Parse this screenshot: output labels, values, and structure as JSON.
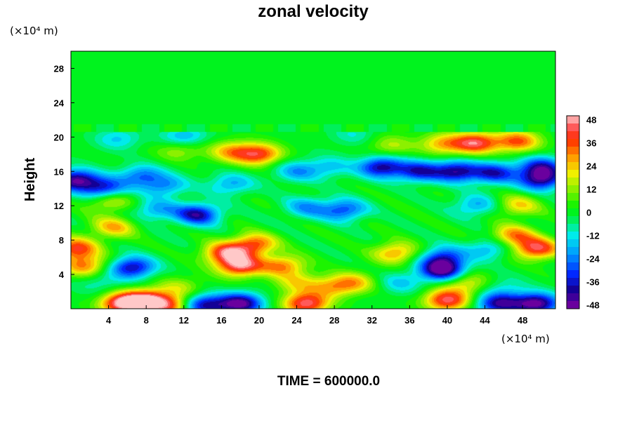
{
  "chart_data": {
    "type": "heatmap",
    "title": "zonal velocity",
    "xlabel": "",
    "ylabel": "Height",
    "x_unit": "(×10⁴ m)",
    "y_unit": "(×10⁴ m)",
    "xlim": [
      0,
      51.5
    ],
    "ylim": [
      0,
      30
    ],
    "xticks": [
      4,
      8,
      12,
      16,
      20,
      24,
      28,
      32,
      36,
      40,
      44,
      48
    ],
    "yticks": [
      4,
      8,
      12,
      16,
      20,
      24,
      28
    ],
    "colorbar": {
      "min": -50,
      "max": 50,
      "ticks": [
        48,
        36,
        24,
        12,
        0,
        -12,
        -24,
        -36,
        -48
      ]
    },
    "annotation": "TIME = 600000.0",
    "grid": false,
    "features": [
      {
        "x": 0.5,
        "y": 7,
        "value": 38
      },
      {
        "x": 1.5,
        "y": 5,
        "value": 30
      },
      {
        "x": 3,
        "y": 3,
        "value": -10
      },
      {
        "x": 4.5,
        "y": 9.5,
        "value": 25
      },
      {
        "x": 6.5,
        "y": 4.8,
        "value": -40
      },
      {
        "x": 5.5,
        "y": 0.6,
        "value": 48
      },
      {
        "x": 8,
        "y": 1,
        "value": 44
      },
      {
        "x": 10.5,
        "y": 0.3,
        "value": 35
      },
      {
        "x": 11.5,
        "y": 2.5,
        "value": 15
      },
      {
        "x": 16.5,
        "y": 6.5,
        "value": 40
      },
      {
        "x": 18,
        "y": 5,
        "value": 45
      },
      {
        "x": 19.5,
        "y": 7.5,
        "value": 35
      },
      {
        "x": 22.5,
        "y": 5,
        "value": 30
      },
      {
        "x": 14,
        "y": 0.4,
        "value": -40
      },
      {
        "x": 18,
        "y": 0.6,
        "value": -48
      },
      {
        "x": 25,
        "y": 0.6,
        "value": 45
      },
      {
        "x": 24,
        "y": 3,
        "value": 18
      },
      {
        "x": 27.5,
        "y": 2.5,
        "value": 20
      },
      {
        "x": 30,
        "y": 3,
        "value": 25
      },
      {
        "x": 34.5,
        "y": 6.5,
        "value": 28
      },
      {
        "x": 35,
        "y": 3,
        "value": -15
      },
      {
        "x": 39.5,
        "y": 6,
        "value": -30
      },
      {
        "x": 39.5,
        "y": 4.5,
        "value": -48
      },
      {
        "x": 40,
        "y": 1,
        "value": 44
      },
      {
        "x": 42,
        "y": 3,
        "value": 20
      },
      {
        "x": 44.5,
        "y": 7,
        "value": -20
      },
      {
        "x": 46,
        "y": 2.5,
        "value": -10
      },
      {
        "x": 49.5,
        "y": 7,
        "value": 42
      },
      {
        "x": 47,
        "y": 8.5,
        "value": 30
      },
      {
        "x": 49.5,
        "y": 0.6,
        "value": -48
      },
      {
        "x": 45.5,
        "y": 0.6,
        "value": -40
      },
      {
        "x": 4,
        "y": 12.5,
        "value": 20
      },
      {
        "x": 13.5,
        "y": 11,
        "value": -40
      },
      {
        "x": 9,
        "y": 11.5,
        "value": -20
      },
      {
        "x": 29,
        "y": 11.5,
        "value": -30
      },
      {
        "x": 25,
        "y": 11.8,
        "value": -20
      },
      {
        "x": 43,
        "y": 12,
        "value": -20
      },
      {
        "x": 47.5,
        "y": 12,
        "value": 22
      },
      {
        "x": 0.5,
        "y": 15,
        "value": -45
      },
      {
        "x": 3.5,
        "y": 14,
        "value": -35
      },
      {
        "x": 7.5,
        "y": 15.5,
        "value": -25
      },
      {
        "x": 10,
        "y": 14.3,
        "value": -22
      },
      {
        "x": 17,
        "y": 14.5,
        "value": -20
      },
      {
        "x": 24,
        "y": 16,
        "value": -20
      },
      {
        "x": 27.5,
        "y": 16.5,
        "value": -15
      },
      {
        "x": 33,
        "y": 16.5,
        "value": -40
      },
      {
        "x": 37,
        "y": 16,
        "value": -35
      },
      {
        "x": 41,
        "y": 16,
        "value": -40
      },
      {
        "x": 45,
        "y": 15.8,
        "value": -35
      },
      {
        "x": 50,
        "y": 15,
        "value": -40
      },
      {
        "x": 50,
        "y": 16.5,
        "value": -35
      },
      {
        "x": 20,
        "y": 18,
        "value": 38
      },
      {
        "x": 17,
        "y": 18.3,
        "value": 25
      },
      {
        "x": 11.5,
        "y": 18.5,
        "value": 15
      },
      {
        "x": 43,
        "y": 19.3,
        "value": 42
      },
      {
        "x": 47.5,
        "y": 19.5,
        "value": 35
      },
      {
        "x": 39.5,
        "y": 19.2,
        "value": 25
      },
      {
        "x": 34,
        "y": 19,
        "value": 15
      },
      {
        "x": 5,
        "y": 19.8,
        "value": -15
      },
      {
        "x": 12,
        "y": 20,
        "value": -20
      },
      {
        "x": 30,
        "y": 20.3,
        "value": -10
      }
    ]
  }
}
